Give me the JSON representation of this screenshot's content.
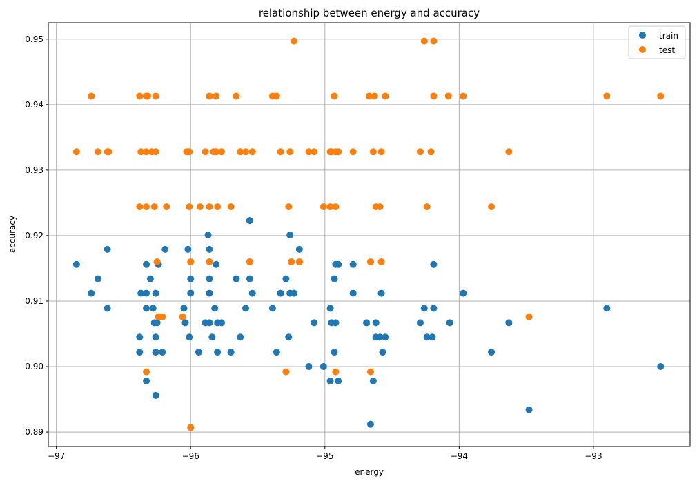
{
  "chart_data": {
    "type": "scatter",
    "title": "relationship between energy and accuracy",
    "xlabel": "energy",
    "ylabel": "accuracy",
    "xlim": [
      -97.06,
      -92.28
    ],
    "ylim": [
      0.8878,
      0.9525
    ],
    "xticks": [
      -97,
      -96,
      -95,
      -94,
      -93
    ],
    "xtick_labels": [
      "−97",
      "−96",
      "−95",
      "−94",
      "−93"
    ],
    "yticks": [
      0.89,
      0.9,
      0.91,
      0.92,
      0.93,
      0.94,
      0.95
    ],
    "ytick_labels": [
      "0.89",
      "0.90",
      "0.91",
      "0.92",
      "0.93",
      "0.94",
      "0.95"
    ],
    "grid": true,
    "legend_position": "top-right",
    "series": [
      {
        "name": "train",
        "color": "#1f77b4",
        "points": [
          [
            -96.85,
            0.9156
          ],
          [
            -96.74,
            0.9112
          ],
          [
            -96.69,
            0.9134
          ],
          [
            -96.62,
            0.9089
          ],
          [
            -96.62,
            0.9179
          ],
          [
            -96.38,
            0.9045
          ],
          [
            -96.38,
            0.9022
          ],
          [
            -96.37,
            0.9112
          ],
          [
            -96.33,
            0.9156
          ],
          [
            -96.33,
            0.9112
          ],
          [
            -96.33,
            0.9089
          ],
          [
            -96.33,
            0.8978
          ],
          [
            -96.3,
            0.9134
          ],
          [
            -96.28,
            0.9089
          ],
          [
            -96.27,
            0.9067
          ],
          [
            -96.26,
            0.8956
          ],
          [
            -96.26,
            0.9045
          ],
          [
            -96.26,
            0.9022
          ],
          [
            -96.26,
            0.9112
          ],
          [
            -96.25,
            0.9067
          ],
          [
            -96.24,
            0.9156
          ],
          [
            -96.21,
            0.9022
          ],
          [
            -96.19,
            0.9179
          ],
          [
            -96.05,
            0.9089
          ],
          [
            -96.04,
            0.9067
          ],
          [
            -96.02,
            0.9179
          ],
          [
            -96.01,
            0.9045
          ],
          [
            -96.0,
            0.9134
          ],
          [
            -96.0,
            0.9112
          ],
          [
            -95.94,
            0.9022
          ],
          [
            -95.89,
            0.9067
          ],
          [
            -95.87,
            0.9201
          ],
          [
            -95.86,
            0.9179
          ],
          [
            -95.86,
            0.9134
          ],
          [
            -95.86,
            0.9112
          ],
          [
            -95.86,
            0.9067
          ],
          [
            -95.84,
            0.9045
          ],
          [
            -95.82,
            0.9089
          ],
          [
            -95.81,
            0.9156
          ],
          [
            -95.8,
            0.9067
          ],
          [
            -95.8,
            0.9022
          ],
          [
            -95.77,
            0.9067
          ],
          [
            -95.7,
            0.9022
          ],
          [
            -95.66,
            0.9134
          ],
          [
            -95.63,
            0.9045
          ],
          [
            -95.59,
            0.9089
          ],
          [
            -95.56,
            0.9223
          ],
          [
            -95.56,
            0.9134
          ],
          [
            -95.54,
            0.9112
          ],
          [
            -95.39,
            0.9089
          ],
          [
            -95.36,
            0.9022
          ],
          [
            -95.33,
            0.9112
          ],
          [
            -95.29,
            0.9134
          ],
          [
            -95.27,
            0.9045
          ],
          [
            -95.26,
            0.9112
          ],
          [
            -95.26,
            0.9201
          ],
          [
            -95.23,
            0.9112
          ],
          [
            -95.19,
            0.9179
          ],
          [
            -95.12,
            0.9
          ],
          [
            -95.08,
            0.9067
          ],
          [
            -95.01,
            0.9
          ],
          [
            -94.96,
            0.8978
          ],
          [
            -94.96,
            0.9089
          ],
          [
            -94.95,
            0.9067
          ],
          [
            -94.93,
            0.9022
          ],
          [
            -94.93,
            0.9134
          ],
          [
            -94.92,
            0.9067
          ],
          [
            -94.92,
            0.9156
          ],
          [
            -94.9,
            0.8978
          ],
          [
            -94.9,
            0.9156
          ],
          [
            -94.79,
            0.9156
          ],
          [
            -94.79,
            0.9112
          ],
          [
            -94.69,
            0.9067
          ],
          [
            -94.66,
            0.8912
          ],
          [
            -94.64,
            0.8978
          ],
          [
            -94.62,
            0.9067
          ],
          [
            -94.62,
            0.9045
          ],
          [
            -94.59,
            0.9045
          ],
          [
            -94.58,
            0.9112
          ],
          [
            -94.57,
            0.9022
          ],
          [
            -94.55,
            0.9045
          ],
          [
            -94.29,
            0.9067
          ],
          [
            -94.26,
            0.9089
          ],
          [
            -94.24,
            0.9045
          ],
          [
            -94.2,
            0.9045
          ],
          [
            -94.19,
            0.9089
          ],
          [
            -94.19,
            0.9156
          ],
          [
            -94.07,
            0.9067
          ],
          [
            -93.97,
            0.9112
          ],
          [
            -93.76,
            0.9022
          ],
          [
            -93.63,
            0.9067
          ],
          [
            -93.48,
            0.8934
          ],
          [
            -92.9,
            0.9089
          ],
          [
            -92.5,
            0.9
          ]
        ]
      },
      {
        "name": "test",
        "color": "#ff7f0e",
        "points": [
          [
            -96.85,
            0.9328
          ],
          [
            -96.74,
            0.9413
          ],
          [
            -96.69,
            0.9328
          ],
          [
            -96.62,
            0.9328
          ],
          [
            -96.61,
            0.9328
          ],
          [
            -96.38,
            0.9413
          ],
          [
            -96.38,
            0.9244
          ],
          [
            -96.37,
            0.9328
          ],
          [
            -96.33,
            0.9413
          ],
          [
            -96.33,
            0.9244
          ],
          [
            -96.33,
            0.9328
          ],
          [
            -96.33,
            0.8992
          ],
          [
            -96.32,
            0.9413
          ],
          [
            -96.29,
            0.9328
          ],
          [
            -96.27,
            0.9244
          ],
          [
            -96.26,
            0.9413
          ],
          [
            -96.26,
            0.9328
          ],
          [
            -96.25,
            0.916
          ],
          [
            -96.24,
            0.9076
          ],
          [
            -96.21,
            0.9076
          ],
          [
            -96.18,
            0.9244
          ],
          [
            -96.06,
            0.9076
          ],
          [
            -96.03,
            0.9328
          ],
          [
            -96.01,
            0.9328
          ],
          [
            -96.0,
            0.916
          ],
          [
            -96.01,
            0.9244
          ],
          [
            -96.0,
            0.8907
          ],
          [
            -95.93,
            0.9244
          ],
          [
            -95.89,
            0.9328
          ],
          [
            -95.86,
            0.916
          ],
          [
            -95.86,
            0.9413
          ],
          [
            -95.86,
            0.9244
          ],
          [
            -95.83,
            0.9328
          ],
          [
            -95.81,
            0.9413
          ],
          [
            -95.81,
            0.9328
          ],
          [
            -95.8,
            0.9244
          ],
          [
            -95.77,
            0.9328
          ],
          [
            -95.7,
            0.9244
          ],
          [
            -95.66,
            0.9413
          ],
          [
            -95.63,
            0.9328
          ],
          [
            -95.59,
            0.9328
          ],
          [
            -95.56,
            0.916
          ],
          [
            -95.54,
            0.9328
          ],
          [
            -95.39,
            0.9413
          ],
          [
            -95.36,
            0.9413
          ],
          [
            -95.33,
            0.9328
          ],
          [
            -95.29,
            0.8992
          ],
          [
            -95.27,
            0.9244
          ],
          [
            -95.26,
            0.9328
          ],
          [
            -95.25,
            0.916
          ],
          [
            -95.23,
            0.9497
          ],
          [
            -95.19,
            0.916
          ],
          [
            -95.12,
            0.9328
          ],
          [
            -95.08,
            0.9328
          ],
          [
            -95.01,
            0.9244
          ],
          [
            -94.96,
            0.9328
          ],
          [
            -94.96,
            0.9244
          ],
          [
            -94.95,
            0.9328
          ],
          [
            -94.93,
            0.9413
          ],
          [
            -94.92,
            0.9244
          ],
          [
            -94.92,
            0.8992
          ],
          [
            -94.92,
            0.9328
          ],
          [
            -94.9,
            0.9328
          ],
          [
            -94.79,
            0.9328
          ],
          [
            -94.67,
            0.9413
          ],
          [
            -94.66,
            0.916
          ],
          [
            -94.66,
            0.8992
          ],
          [
            -94.64,
            0.9328
          ],
          [
            -94.63,
            0.9413
          ],
          [
            -94.62,
            0.9244
          ],
          [
            -94.59,
            0.9244
          ],
          [
            -94.58,
            0.916
          ],
          [
            -94.58,
            0.9328
          ],
          [
            -94.55,
            0.9413
          ],
          [
            -94.29,
            0.9328
          ],
          [
            -94.26,
            0.9497
          ],
          [
            -94.24,
            0.9244
          ],
          [
            -94.21,
            0.9328
          ],
          [
            -94.19,
            0.9497
          ],
          [
            -94.19,
            0.9413
          ],
          [
            -94.08,
            0.9413
          ],
          [
            -93.97,
            0.9413
          ],
          [
            -93.76,
            0.9244
          ],
          [
            -93.63,
            0.9328
          ],
          [
            -93.48,
            0.9076
          ],
          [
            -92.9,
            0.9413
          ],
          [
            -92.5,
            0.9413
          ]
        ]
      }
    ]
  }
}
